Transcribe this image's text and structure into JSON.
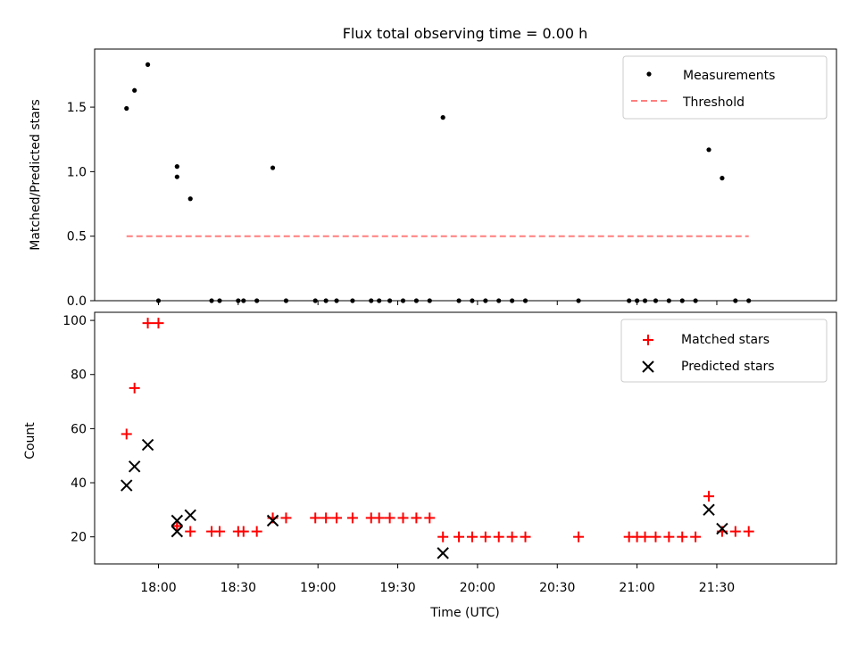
{
  "figure": {
    "title": "Flux total observing time = 0.00 h"
  },
  "chart_data": [
    {
      "type": "scatter",
      "title": "Flux total observing time = 0.00 h",
      "xlabel": "",
      "ylabel": "Matched/Predicted stars",
      "x_unit": "time_utc",
      "xlim": [
        "17:36",
        "22:15"
      ],
      "ylim": [
        0,
        1.95
      ],
      "yticks": [
        "0.0",
        "0.5",
        "1.0",
        "1.5"
      ],
      "ytick_values": [
        0,
        0.5,
        1.0,
        1.5
      ],
      "legend": {
        "position": "top-right",
        "entries": [
          "Measurements",
          "Threshold"
        ]
      },
      "series": [
        {
          "name": "Measurements",
          "marker": "dot",
          "color": "#000000",
          "x": [
            "17:48",
            "17:51",
            "17:56",
            "18:00",
            "18:07",
            "18:07",
            "18:12",
            "18:20",
            "18:23",
            "18:30",
            "18:32",
            "18:37",
            "18:43",
            "18:48",
            "18:59",
            "19:03",
            "19:07",
            "19:13",
            "19:20",
            "19:23",
            "19:27",
            "19:32",
            "19:37",
            "19:42",
            "19:47",
            "19:53",
            "19:58",
            "20:03",
            "20:08",
            "20:13",
            "20:18",
            "20:38",
            "20:57",
            "21:00",
            "21:03",
            "21:07",
            "21:12",
            "21:17",
            "21:22",
            "21:27",
            "21:32",
            "21:37",
            "21:42"
          ],
          "y": [
            1.49,
            1.63,
            1.83,
            0,
            1.04,
            0.96,
            0.79,
            0,
            0,
            0,
            0,
            0,
            1.03,
            0,
            0,
            0,
            0,
            0,
            0,
            0,
            0,
            0,
            0,
            0,
            1.42,
            0,
            0,
            0,
            0,
            0,
            0,
            0,
            0,
            0,
            0,
            0,
            0,
            0,
            0,
            1.17,
            0.95,
            0,
            0
          ]
        },
        {
          "name": "Threshold",
          "style": "dashed",
          "color": "#ff7f7f",
          "x": [
            "17:48",
            "21:42"
          ],
          "y": [
            0.5,
            0.5
          ]
        }
      ]
    },
    {
      "type": "scatter",
      "xlabel": "Time (UTC)",
      "ylabel": "Count",
      "x_unit": "time_utc",
      "xlim": [
        "17:36",
        "22:15"
      ],
      "ylim": [
        10,
        103
      ],
      "yticks": [
        "20",
        "40",
        "60",
        "80",
        "100"
      ],
      "ytick_values": [
        20,
        40,
        60,
        80,
        100
      ],
      "xticks": [
        "18:00",
        "18:30",
        "19:00",
        "19:30",
        "20:00",
        "20:30",
        "21:00",
        "21:30"
      ],
      "legend": {
        "position": "top-right",
        "entries": [
          "Matched stars",
          "Predicted stars"
        ]
      },
      "series": [
        {
          "name": "Matched stars",
          "marker": "plus",
          "color": "#ff0000",
          "x": [
            "17:48",
            "17:51",
            "17:56",
            "18:00",
            "18:07",
            "18:07",
            "18:12",
            "18:20",
            "18:23",
            "18:30",
            "18:32",
            "18:37",
            "18:43",
            "18:48",
            "18:59",
            "19:03",
            "19:07",
            "19:13",
            "19:20",
            "19:23",
            "19:27",
            "19:32",
            "19:37",
            "19:42",
            "19:47",
            "19:53",
            "19:58",
            "20:03",
            "20:08",
            "20:13",
            "20:18",
            "20:38",
            "20:57",
            "21:00",
            "21:03",
            "21:07",
            "21:12",
            "21:17",
            "21:22",
            "21:27",
            "21:32",
            "21:37",
            "21:42"
          ],
          "y": [
            58,
            75,
            99,
            99,
            24,
            24,
            22,
            22,
            22,
            22,
            22,
            22,
            27,
            27,
            27,
            27,
            27,
            27,
            27,
            27,
            27,
            27,
            27,
            27,
            20,
            20,
            20,
            20,
            20,
            20,
            20,
            20,
            20,
            20,
            20,
            20,
            20,
            20,
            20,
            35,
            22,
            22,
            22
          ]
        },
        {
          "name": "Predicted stars",
          "marker": "x",
          "color": "#000000",
          "x": [
            "17:48",
            "17:51",
            "17:56",
            "18:07",
            "18:07",
            "18:12",
            "18:43",
            "19:47",
            "21:27",
            "21:32"
          ],
          "y": [
            39,
            46,
            54,
            26,
            22,
            28,
            26,
            14,
            30,
            23
          ]
        }
      ]
    }
  ]
}
